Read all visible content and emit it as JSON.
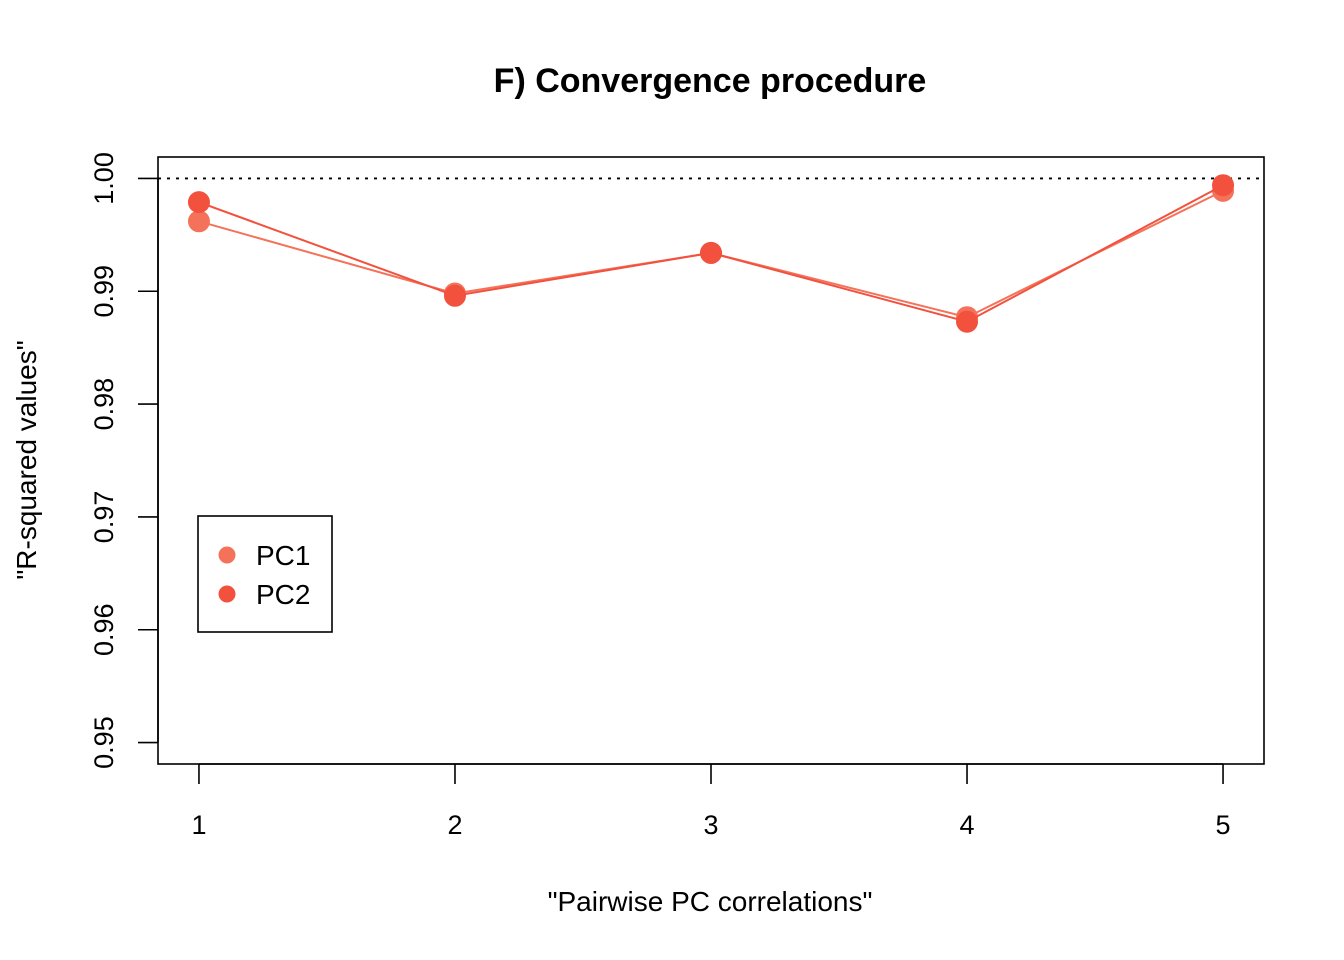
{
  "chart_data": {
    "type": "line",
    "title": "F) Convergence procedure",
    "xlabel": "\"Pairwise PC correlations\"",
    "ylabel": "\"R-squared values\"",
    "x": [
      1,
      2,
      3,
      4,
      5
    ],
    "xlim": [
      0.84,
      5.16
    ],
    "ylim": [
      0.9481,
      1.0019
    ],
    "xticks": [
      "1",
      "2",
      "3",
      "4",
      "5"
    ],
    "yticks": [
      "0.95",
      "0.96",
      "0.97",
      "0.98",
      "0.99",
      "1.00"
    ],
    "reference_line": {
      "y": 1.0,
      "style": "dotted"
    },
    "legend_position": "left",
    "series": [
      {
        "name": "PC1",
        "color": "#f4725a",
        "values": [
          0.9962,
          0.9898,
          0.9934,
          0.9877,
          0.9989
        ]
      },
      {
        "name": "PC2",
        "color": "#f2513e",
        "values": [
          0.9979,
          0.9896,
          0.9934,
          0.9873,
          0.9994
        ]
      }
    ]
  }
}
